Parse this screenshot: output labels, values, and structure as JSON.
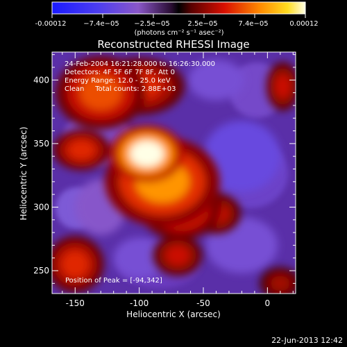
{
  "colorbar": {
    "tick_labels": [
      "-0.00012",
      "−7.4e−05",
      "−2.5e−05",
      "2.5e−05",
      "7.4e−05",
      "0.00012"
    ],
    "range": [
      -0.00012,
      0.00012
    ],
    "units": "(photons cm⁻² s⁻¹ asec⁻²)"
  },
  "chart_data": {
    "type": "heatmap",
    "title": "Reconstructed RHESSI Image",
    "xlabel": "Heliocentric X (arcsec)",
    "ylabel": "Heliocentric Y (arcsec)",
    "xlim": [
      -168,
      22
    ],
    "ylim": [
      232,
      422
    ],
    "xticks": [
      -150,
      -100,
      -50,
      0
    ],
    "yticks": [
      250,
      300,
      350,
      400
    ],
    "grid": false,
    "colormap": "rainbow-black-to-yellow-white",
    "annotations": [
      "24-Feb-2004 16:21:28.000 to 16:26:30.000",
      "Detectors: 4F 5F 6F 7F 8F, Att 0",
      "Energy Range: 12.0 - 25.0 keV",
      "Clean     Total counts: 2.88E+03"
    ],
    "peak_label": "Position of Peak = [-94,342]",
    "peak": {
      "x": -94,
      "y": 342
    },
    "bright_sources": [
      {
        "x": -94,
        "y": 342,
        "rx": 18,
        "ry": 14,
        "value": 0.00012
      },
      {
        "x": -82,
        "y": 320,
        "rx": 28,
        "ry": 22,
        "value": 8e-05
      },
      {
        "x": -68,
        "y": 300,
        "rx": 20,
        "ry": 16,
        "value": 6e-05
      },
      {
        "x": -40,
        "y": 295,
        "rx": 12,
        "ry": 10,
        "value": 4e-05
      },
      {
        "x": -130,
        "y": 390,
        "rx": 22,
        "ry": 18,
        "value": 6e-05
      },
      {
        "x": -100,
        "y": 395,
        "rx": 22,
        "ry": 14,
        "value": 5e-05
      },
      {
        "x": -145,
        "y": 345,
        "rx": 14,
        "ry": 10,
        "value": 5e-05
      },
      {
        "x": -150,
        "y": 255,
        "rx": 14,
        "ry": 14,
        "value": 5e-05
      },
      {
        "x": -70,
        "y": 262,
        "rx": 12,
        "ry": 10,
        "value": 4e-05
      },
      {
        "x": 12,
        "y": 395,
        "rx": 8,
        "ry": 12,
        "value": 4e-05
      },
      {
        "x": 10,
        "y": 240,
        "rx": 10,
        "ry": 8,
        "value": 3e-05
      }
    ],
    "dark_regions": [
      {
        "x": -20,
        "y": 340,
        "rx": 30,
        "ry": 28,
        "value": -6e-05
      },
      {
        "x": -20,
        "y": 270,
        "rx": 28,
        "ry": 22,
        "value": -5e-05
      },
      {
        "x": -130,
        "y": 300,
        "rx": 20,
        "ry": 22,
        "value": -4e-05
      },
      {
        "x": -100,
        "y": 260,
        "rx": 20,
        "ry": 16,
        "value": -5e-05
      },
      {
        "x": -40,
        "y": 400,
        "rx": 22,
        "ry": 16,
        "value": -5e-05
      }
    ]
  },
  "footer": {
    "date": "22-Jun-2013 12:42"
  }
}
